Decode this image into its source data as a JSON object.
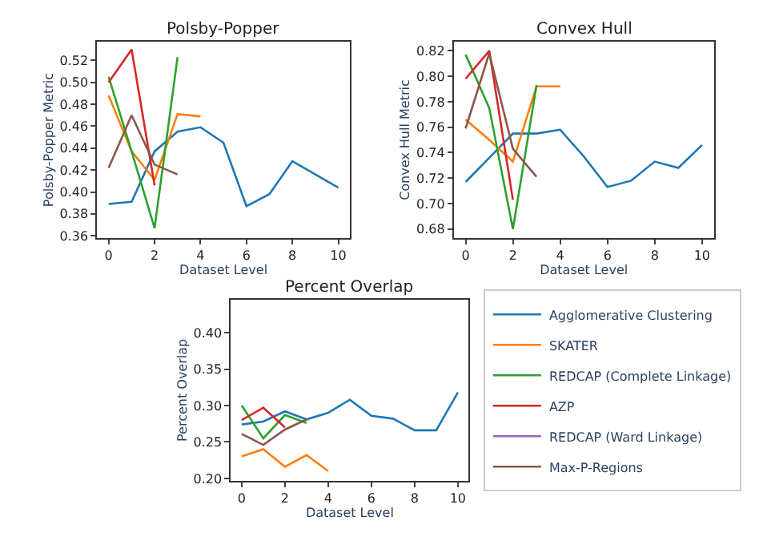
{
  "chart_data": [
    {
      "type": "line",
      "title": "Polsby-Popper",
      "xlabel": "Dataset Level",
      "ylabel": "Polsby-Popper Metric",
      "xlim": [
        -0.5,
        10.5
      ],
      "xticks": [
        0,
        2,
        4,
        6,
        8,
        10
      ],
      "ylim": [
        0.358,
        0.537
      ],
      "yticks": [
        0.36,
        0.38,
        {
          "value": 0.4,
          "label": "0.40"
        },
        0.42,
        0.44,
        0.46,
        0.48,
        {
          "value": 0.5,
          "label": "0.50"
        },
        0.52
      ],
      "legend": false,
      "series": [
        {
          "color": "#1f77b4",
          "x": [
            0,
            1,
            2,
            3,
            4,
            5,
            6,
            7,
            8,
            9,
            10
          ],
          "values": [
            0.389,
            0.391,
            0.437,
            0.455,
            0.459,
            0.445,
            0.387,
            0.398,
            0.428,
            0.416,
            0.404
          ]
        },
        {
          "color": "#ff7f0e",
          "x": [
            0,
            1,
            2,
            3,
            4
          ],
          "values": [
            0.488,
            0.437,
            0.411,
            0.471,
            0.469
          ]
        },
        {
          "color": "#2ca02c",
          "x": [
            0,
            1,
            2,
            3
          ],
          "values": [
            0.505,
            0.437,
            0.367,
            0.523
          ]
        },
        {
          "color": "#d62728",
          "x": [
            0,
            1,
            2
          ],
          "values": [
            0.5,
            0.53,
            0.406
          ]
        },
        {
          "color": "#8c564b",
          "x": [
            0,
            1,
            2,
            3
          ],
          "values": [
            0.422,
            0.47,
            0.425,
            0.416
          ]
        }
      ]
    },
    {
      "type": "line",
      "title": "Convex Hull",
      "xlabel": "Dataset Level",
      "ylabel": "Convex Hull Metric",
      "xlim": [
        -0.5,
        10.5
      ],
      "xticks": [
        0,
        2,
        4,
        6,
        8,
        10
      ],
      "ylim": [
        0.673,
        0.827
      ],
      "yticks": [
        0.68,
        {
          "value": 0.7,
          "label": "0.70"
        },
        0.72,
        0.74,
        0.76,
        0.78,
        {
          "value": 0.8,
          "label": "0.80"
        },
        0.82
      ],
      "legend": false,
      "series": [
        {
          "color": "#1f77b4",
          "x": [
            0,
            1,
            2,
            3,
            4,
            5,
            6,
            7,
            8,
            9,
            10
          ],
          "values": [
            0.717,
            0.736,
            0.755,
            0.755,
            0.758,
            0.737,
            0.713,
            0.718,
            0.733,
            0.728,
            0.746
          ]
        },
        {
          "color": "#ff7f0e",
          "x": [
            0,
            1,
            2,
            3,
            4
          ],
          "values": [
            0.766,
            0.75,
            0.733,
            0.792,
            0.792
          ]
        },
        {
          "color": "#2ca02c",
          "x": [
            0,
            1,
            2,
            3
          ],
          "values": [
            0.817,
            0.775,
            0.68,
            0.793
          ]
        },
        {
          "color": "#d62728",
          "x": [
            0,
            1,
            2
          ],
          "values": [
            0.798,
            0.82,
            0.703
          ]
        },
        {
          "color": "#8c564b",
          "x": [
            0,
            1,
            2,
            3
          ],
          "values": [
            0.759,
            0.818,
            0.743,
            0.721
          ]
        }
      ]
    },
    {
      "type": "line",
      "title": "Percent Overlap",
      "xlabel": "Dataset Level",
      "ylabel": "Percent Overlap",
      "xlim": [
        -0.5,
        10.5
      ],
      "xticks": [
        0,
        2,
        4,
        6,
        8,
        10
      ],
      "ylim": [
        0.197,
        0.445
      ],
      "yticks": [
        {
          "value": 0.2,
          "label": "0.20"
        },
        0.25,
        {
          "value": 0.3,
          "label": "0.30"
        },
        0.35,
        {
          "value": 0.4,
          "label": "0.40"
        }
      ],
      "legend": "right",
      "series": [
        {
          "name": "Agglomerative Clustering",
          "color": "#1f77b4",
          "x": [
            0,
            1,
            2,
            3,
            4,
            5,
            6,
            7,
            8,
            9,
            10
          ],
          "values": [
            0.274,
            0.278,
            0.292,
            0.281,
            0.29,
            0.308,
            0.286,
            0.282,
            0.266,
            0.266,
            0.318
          ]
        },
        {
          "name": "SKATER",
          "color": "#ff7f0e",
          "x": [
            0,
            1,
            2,
            3,
            4
          ],
          "values": [
            0.23,
            0.24,
            0.216,
            0.232,
            0.21
          ]
        },
        {
          "name": "REDCAP (Complete Linkage)",
          "color": "#2ca02c",
          "x": [
            0,
            1,
            2,
            3
          ],
          "values": [
            0.3,
            0.255,
            0.287,
            0.276
          ]
        },
        {
          "name": "AZP",
          "color": "#d62728",
          "x": [
            0,
            1,
            2
          ],
          "values": [
            0.28,
            0.297,
            0.27
          ]
        },
        {
          "name": "REDCAP (Ward Linkage)",
          "color": "#9467bd"
        },
        {
          "name": "Max-P-Regions",
          "color": "#8c564b",
          "x": [
            0,
            1,
            2,
            3
          ],
          "values": [
            0.261,
            0.246,
            0.267,
            0.281
          ]
        }
      ]
    }
  ]
}
